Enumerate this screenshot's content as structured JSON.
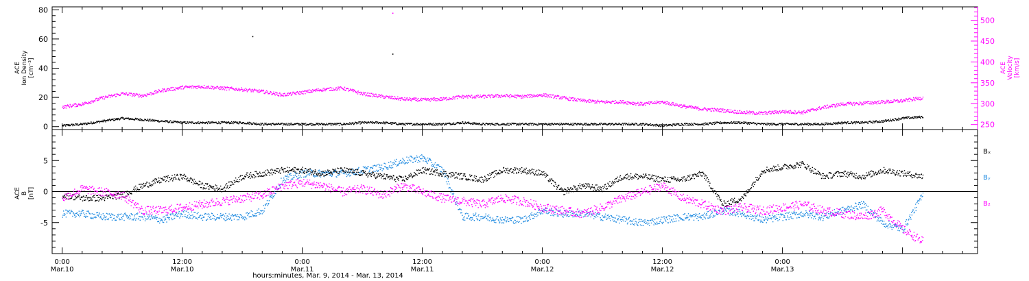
{
  "chart_data": [
    {
      "type": "scatter",
      "ylabel_left": [
        "ACE",
        "Ion Density",
        "[cm⁻³]"
      ],
      "ylabel_right": [
        "ACE",
        "Velocity",
        "[km/s]"
      ],
      "left_ylim": [
        -2,
        82
      ],
      "left_yticks": [
        0,
        20,
        40,
        60,
        80
      ],
      "right_ylim": [
        238,
        532
      ],
      "right_yticks": [
        250,
        300,
        350,
        400,
        450,
        500
      ],
      "x_range_hours": [
        -1,
        91.5
      ],
      "grid": false,
      "series": [
        {
          "color": "#000000",
          "axis": "left",
          "x": [
            0,
            2,
            4,
            6,
            8,
            10,
            12,
            14,
            16,
            18,
            20,
            22,
            24,
            26,
            28,
            30,
            32,
            34,
            36,
            38,
            40,
            42,
            44,
            46,
            48,
            50,
            52,
            54,
            56,
            58,
            60,
            62,
            64,
            66,
            68,
            70,
            72,
            74,
            76,
            78,
            80,
            82,
            84,
            86
          ],
          "y": [
            1,
            2,
            4,
            6,
            5,
            4,
            3,
            3,
            3,
            3,
            2,
            2,
            2,
            2,
            2,
            3,
            3,
            2,
            2,
            2,
            3,
            2,
            2,
            2,
            2,
            2,
            2,
            2,
            2,
            2,
            1,
            2,
            2,
            3,
            3,
            2,
            2,
            2,
            2,
            3,
            3,
            4,
            6,
            7
          ]
        },
        {
          "color": "#ff00ff",
          "axis": "right",
          "x": [
            0,
            2,
            4,
            6,
            8,
            10,
            12,
            14,
            16,
            18,
            20,
            22,
            24,
            26,
            28,
            30,
            32,
            34,
            36,
            38,
            40,
            42,
            44,
            46,
            48,
            50,
            52,
            54,
            56,
            58,
            60,
            62,
            64,
            66,
            68,
            70,
            72,
            74,
            76,
            78,
            80,
            82,
            84,
            86
          ],
          "y": [
            293,
            300,
            315,
            325,
            320,
            333,
            340,
            342,
            338,
            335,
            330,
            322,
            328,
            335,
            338,
            325,
            318,
            312,
            310,
            312,
            318,
            318,
            320,
            318,
            322,
            315,
            308,
            305,
            305,
            300,
            305,
            295,
            288,
            285,
            280,
            278,
            282,
            280,
            292,
            300,
            302,
            305,
            308,
            315
          ]
        }
      ],
      "outliers": [
        {
          "axis": "left",
          "x": 19,
          "y": 62
        },
        {
          "axis": "left",
          "x": 33,
          "y": 50
        },
        {
          "axis": "right",
          "x": 33,
          "y": 518
        }
      ]
    },
    {
      "type": "scatter",
      "ylabel_left": [
        "ACE",
        "B",
        "[nT]"
      ],
      "ylim": [
        -10,
        10
      ],
      "yticks": [
        -5,
        0,
        5
      ],
      "x_range_hours": [
        -1,
        91.5
      ],
      "zero_line": true,
      "grid": false,
      "legend": [
        "Bₓ",
        "Bᵧ",
        "B₂"
      ],
      "series": [
        {
          "name": "Bx",
          "color": "#000000",
          "x": [
            0,
            2,
            4,
            6,
            8,
            10,
            12,
            14,
            16,
            18,
            20,
            22,
            24,
            26,
            28,
            30,
            32,
            34,
            36,
            38,
            40,
            42,
            44,
            46,
            48,
            50,
            52,
            54,
            56,
            58,
            60,
            62,
            64,
            66,
            68,
            70,
            72,
            74,
            76,
            78,
            80,
            82,
            84,
            86
          ],
          "y": [
            -0.5,
            -1,
            -1,
            -0.5,
            1,
            2,
            2.5,
            1,
            0.5,
            2.5,
            3,
            3.5,
            3.5,
            3,
            3.5,
            3,
            2.5,
            2,
            3.5,
            3,
            2.5,
            2,
            3.5,
            3.5,
            3,
            0,
            1,
            0.5,
            2.5,
            2.5,
            2,
            2,
            3,
            -2,
            -1,
            3.5,
            4,
            4.5,
            2.5,
            3,
            2.5,
            3.5,
            3,
            2.5
          ]
        },
        {
          "name": "By",
          "color": "#1f8ae0",
          "x": [
            0,
            2,
            4,
            6,
            8,
            10,
            12,
            14,
            16,
            18,
            20,
            22,
            24,
            26,
            28,
            30,
            32,
            34,
            36,
            38,
            40,
            42,
            44,
            46,
            48,
            50,
            52,
            54,
            56,
            58,
            60,
            62,
            64,
            66,
            68,
            70,
            72,
            74,
            76,
            78,
            80,
            82,
            84,
            86
          ],
          "y": [
            -3.5,
            -3.5,
            -4,
            -4,
            -4,
            -4.5,
            -3.5,
            -4,
            -4,
            -4,
            -3,
            2,
            3,
            3,
            3,
            3.5,
            4,
            5,
            5.5,
            3.5,
            -4,
            -4,
            -4.5,
            -4.5,
            -3,
            -3.5,
            -3.5,
            -4,
            -4.5,
            -5,
            -4.5,
            -4,
            -4,
            -3,
            -3.5,
            -4.5,
            -4,
            -3.5,
            -4,
            -3,
            -2,
            -5,
            -6,
            -0.5
          ]
        },
        {
          "name": "Bz",
          "color": "#ff00ff",
          "x": [
            0,
            2,
            4,
            6,
            8,
            10,
            12,
            14,
            16,
            18,
            20,
            22,
            24,
            26,
            28,
            30,
            32,
            34,
            36,
            38,
            40,
            42,
            44,
            46,
            48,
            50,
            52,
            54,
            56,
            58,
            60,
            62,
            64,
            66,
            68,
            70,
            72,
            74,
            76,
            78,
            80,
            82,
            84,
            86
          ],
          "y": [
            -1,
            0.5,
            0,
            -0.5,
            -3,
            -3,
            -2.5,
            -2,
            -1.5,
            -1,
            -0.5,
            1,
            1.5,
            1,
            0,
            0.5,
            -0.5,
            1,
            0,
            -1,
            -1.5,
            -2,
            -1,
            -1.5,
            -2.5,
            -3,
            -3.5,
            -2.5,
            -1,
            0,
            1,
            -1,
            -2,
            -3,
            -2.5,
            -3,
            -2.5,
            -2,
            -3,
            -3.5,
            -4,
            -3,
            -6,
            -8
          ]
        }
      ]
    }
  ],
  "x_ticks": [
    {
      "time": "0:00",
      "date": "Mar.10",
      "hour": 0
    },
    {
      "time": "12:00",
      "date": "Mar.10",
      "hour": 12
    },
    {
      "time": "0:00",
      "date": "Mar.11",
      "hour": 24
    },
    {
      "time": "12:00",
      "date": "Mar.11",
      "hour": 36
    },
    {
      "time": "0:00",
      "date": "Mar.12",
      "hour": 48
    },
    {
      "time": "12:00",
      "date": "Mar.12",
      "hour": 60
    },
    {
      "time": "0:00",
      "date": "Mar.13",
      "hour": 72
    }
  ],
  "x_label": "hours:minutes, Mar.  9, 2014 - Mar. 13, 2014"
}
